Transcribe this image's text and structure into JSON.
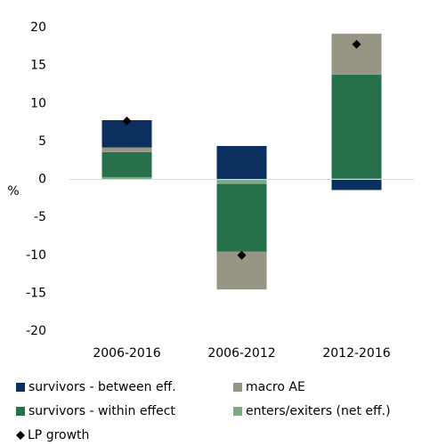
{
  "chart_data": {
    "type": "bar",
    "stacked": true,
    "ylabel": "%",
    "categories": [
      "2006-2016",
      "2006-2012",
      "2012-2016"
    ],
    "series": [
      {
        "name": "survivors - between eff.",
        "color": "#0b2f5e",
        "values": [
          3.6,
          4.4,
          -1.4
        ]
      },
      {
        "name": "macro AE",
        "color": "#979685",
        "values": [
          0.6,
          -5.0,
          5.4
        ]
      },
      {
        "name": "survivors - within effect",
        "color": "#26704c",
        "values": [
          3.3,
          -8.9,
          13.7
        ]
      },
      {
        "name": "enters/exiters (net eff.)",
        "color": "#7fa885",
        "values": [
          0.3,
          -0.6,
          0.1
        ]
      }
    ],
    "markers": {
      "name": "LP growth",
      "color": "#000000",
      "values": [
        7.7,
        -10.0,
        17.8
      ]
    },
    "ylim": [
      -20,
      20
    ],
    "yticks": [
      -20,
      -15,
      -10,
      -5,
      0,
      5,
      10,
      15,
      20
    ]
  }
}
